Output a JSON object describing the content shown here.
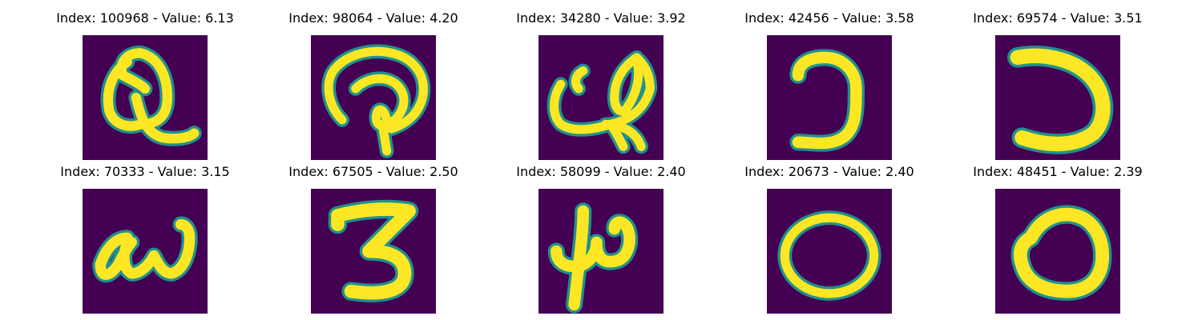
{
  "palette": {
    "background": "#440154",
    "mid": "#21918c",
    "foreground": "#fde725"
  },
  "panels": [
    {
      "title": "Index: 100968 - Value: 6.13",
      "glyph": "Q-like handwritten shape"
    },
    {
      "title": "Index: 98064 - Value: 4.20",
      "glyph": "curled loop shape"
    },
    {
      "title": "Index: 34280 - Value: 3.92",
      "glyph": "looped cursive shape"
    },
    {
      "title": "Index: 42456 - Value: 3.58",
      "glyph": "reversed C shape"
    },
    {
      "title": "Index: 69574 - Value: 3.51",
      "glyph": "reversed C shape"
    },
    {
      "title": "Index: 70333 - Value: 3.15",
      "glyph": "w-like cursive shape"
    },
    {
      "title": "Index: 67505 - Value: 2.50",
      "glyph": "digit 3 shape"
    },
    {
      "title": "Index: 58099 - Value: 2.40",
      "glyph": "mu-like shape"
    },
    {
      "title": "Index: 20673 - Value: 2.40",
      "glyph": "letter o shape"
    },
    {
      "title": "Index: 48451 - Value: 2.39",
      "glyph": "letter o shape"
    }
  ]
}
